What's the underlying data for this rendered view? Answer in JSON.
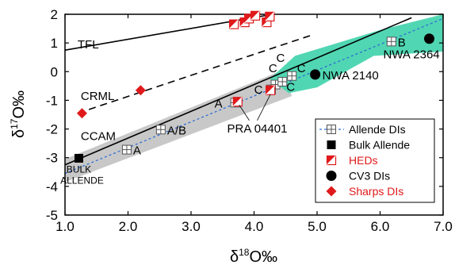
{
  "chart_data": {
    "type": "scatter",
    "xlabel_base": "δ",
    "xlabel_sup": "18",
    "xlabel_rest": "O‰",
    "ylabel_base": "δ",
    "ylabel_sup": "17",
    "ylabel_rest": "O‰",
    "xlim": [
      1.0,
      7.0
    ],
    "ylim": [
      -5,
      2
    ],
    "xticks": [
      1.0,
      2.0,
      3.0,
      4.0,
      5.0,
      6.0,
      7.0
    ],
    "xtick_labels": [
      "1.0",
      "2.0",
      "3.0",
      "4.0",
      "5.0",
      "6.0",
      "7.0"
    ],
    "yticks": [
      -5,
      -4,
      -3,
      -2,
      -1,
      0,
      1,
      2
    ],
    "ytick_labels": [
      "-5",
      "-4",
      "-3",
      "-2",
      "-1",
      "0",
      "1",
      "2"
    ],
    "reference_lines": [
      {
        "label": "TFL",
        "style": "solid",
        "x": [
          1.0,
          4.3
        ],
        "y": [
          0.75,
          2.0
        ]
      },
      {
        "label": "CRML",
        "style": "dashed",
        "x": [
          1.2,
          4.95
        ],
        "y": [
          -1.45,
          1.3
        ]
      },
      {
        "label": "CCAM",
        "style": "solid",
        "x": [
          1.0,
          6.5
        ],
        "y": [
          -3.25,
          1.88
        ]
      }
    ],
    "line_labels": [
      {
        "text": "TFL",
        "x": 1.2,
        "y": 0.95
      },
      {
        "text": "CRML",
        "x": 1.25,
        "y": -0.85
      },
      {
        "text": "CCAM",
        "x": 1.25,
        "y": -2.25
      }
    ],
    "series": [
      {
        "name": "Allende DIs",
        "marker": "boxed-plus",
        "color": "#7f7f7f",
        "fit_line": {
          "x": [
            1.0,
            7.0
          ],
          "y": [
            -3.55,
            1.85
          ]
        },
        "points": [
          {
            "x": 1.98,
            "y": -2.72,
            "label": "A"
          },
          {
            "x": 2.52,
            "y": -2.02,
            "label": "A/B"
          },
          {
            "x": 3.7,
            "y": -1.08,
            "label": "A"
          },
          {
            "x": 4.27,
            "y": -0.62,
            "label": ""
          },
          {
            "x": 4.34,
            "y": -0.45,
            "label": "C"
          },
          {
            "x": 4.45,
            "y": -0.35,
            "label": ""
          },
          {
            "x": 4.6,
            "y": -0.15,
            "label": "C"
          },
          {
            "x": 6.18,
            "y": 1.05,
            "label": "B"
          }
        ]
      },
      {
        "name": "Bulk Allende",
        "marker": "square",
        "color": "#000000",
        "points": [
          {
            "x": 1.22,
            "y": -3.02,
            "label": "BULK ALLENDE"
          }
        ]
      },
      {
        "name": "HEDs",
        "marker": "half-square",
        "color": "#e0191b",
        "points": [
          {
            "x": 3.68,
            "y": 1.65
          },
          {
            "x": 3.85,
            "y": 1.72
          },
          {
            "x": 3.92,
            "y": 1.85
          },
          {
            "x": 4.02,
            "y": 1.95
          },
          {
            "x": 4.2,
            "y": 1.72
          },
          {
            "x": 4.25,
            "y": 1.92
          },
          {
            "x": 3.74,
            "y": -1.05
          },
          {
            "x": 4.26,
            "y": -0.65
          }
        ]
      },
      {
        "name": "CV3 DIs",
        "marker": "circle",
        "color": "#000000",
        "points": [
          {
            "x": 4.97,
            "y": -0.1,
            "label": "NWA 2140"
          },
          {
            "x": 6.78,
            "y": 1.15,
            "label": "NWA 2364"
          }
        ]
      },
      {
        "name": "Sharps DIs",
        "marker": "diamond",
        "color": "#e0191b",
        "points": [
          {
            "x": 1.27,
            "y": -1.45
          },
          {
            "x": 2.2,
            "y": -0.65
          }
        ]
      }
    ],
    "annotations": [
      {
        "text": "PRA 04401",
        "x": 4.05,
        "y": -1.95
      },
      {
        "text": "C",
        "x": 4.07,
        "y": -0.6
      },
      {
        "text": "C",
        "x": 4.3,
        "y": 0.15
      },
      {
        "text": "C",
        "x": 4.42,
        "y": 0.5
      },
      {
        "text": "C",
        "x": 4.58,
        "y": -0.5
      },
      {
        "text": "C",
        "x": 4.75,
        "y": 0.15
      }
    ],
    "shaded_regions": [
      {
        "color": "#c8c8c8",
        "description_hidden": true
      },
      {
        "color": "#50d6b2",
        "description_hidden": true
      }
    ],
    "legend": {
      "position": "lower-right",
      "entries": [
        {
          "label": "Allende DIs",
          "color": "#000000",
          "marker": "boxed-plus-dashed"
        },
        {
          "label": "Bulk Allende",
          "color": "#000000",
          "marker": "square"
        },
        {
          "label": "HEDs",
          "color": "#e0191b",
          "marker": "half-square"
        },
        {
          "label": "CV3 DIs",
          "color": "#000000",
          "marker": "circle"
        },
        {
          "label": "Sharps DIs",
          "color": "#e0191b",
          "marker": "diamond"
        }
      ]
    },
    "grid": false
  }
}
